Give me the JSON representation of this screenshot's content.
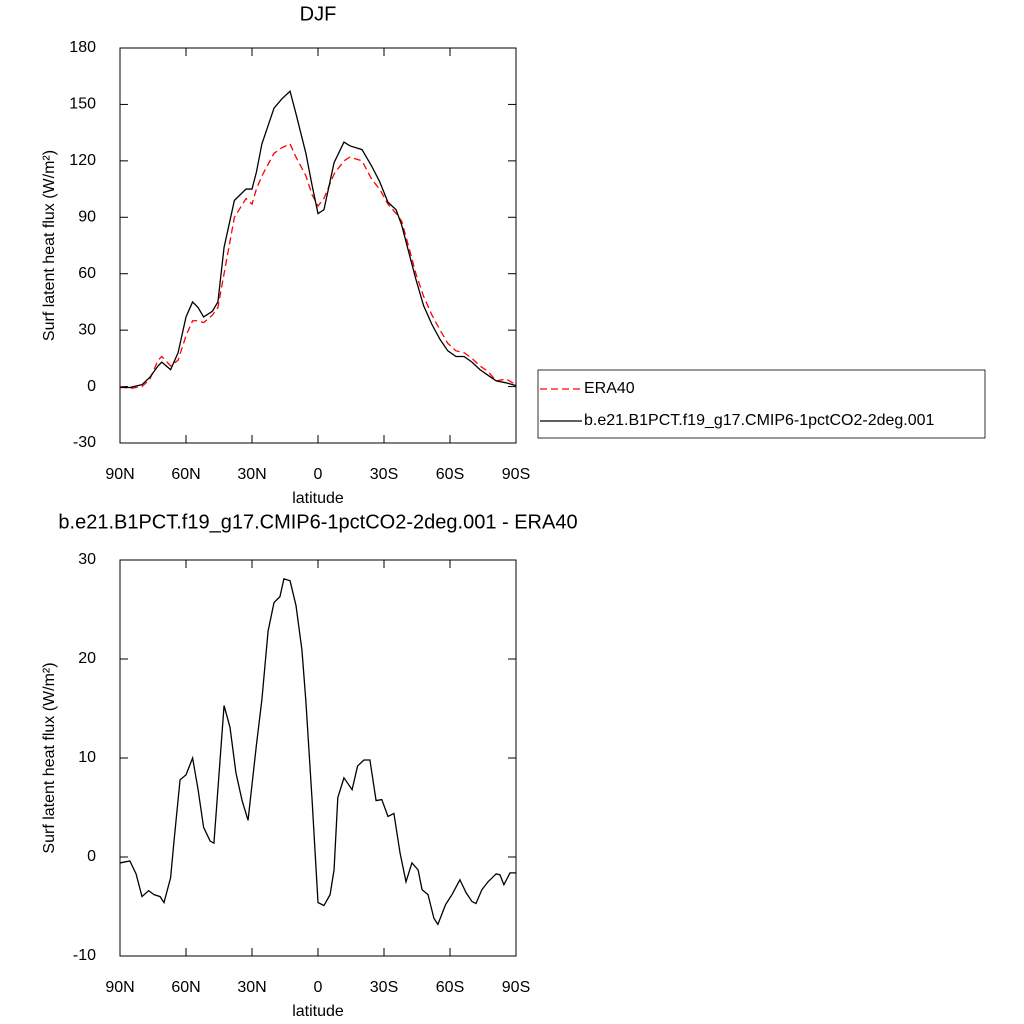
{
  "chart_data": [
    {
      "type": "line",
      "title": "DJF",
      "xlabel": "latitude",
      "ylabel": "Surf latent heat flux (W/m²)",
      "x": [
        90,
        85.5,
        80,
        76.4,
        72.7,
        71,
        67,
        63.6,
        60,
        57,
        54.5,
        52,
        48,
        45.5,
        42.7,
        38,
        32.7,
        30,
        28,
        25.5,
        20,
        16.4,
        12.7,
        10,
        5.5,
        2.7,
        0,
        -2.7,
        -7.3,
        -11.8,
        -14.5,
        -20,
        -24.5,
        -28,
        -31.8,
        -35.5,
        -38,
        -41.8,
        -44.5,
        -48,
        -51.8,
        -55.5,
        -59,
        -62.7,
        -66.4,
        -70,
        -73.6,
        -77.3,
        -81,
        -85.5,
        -90
      ],
      "series": [
        {
          "name": "ERA40",
          "color": "#ff0000",
          "dashed": true,
          "values": [
            0,
            -1,
            0,
            4,
            14,
            16,
            11,
            14,
            27,
            35,
            35,
            34,
            38,
            42,
            60,
            90,
            100,
            97,
            105,
            112,
            124,
            127,
            129,
            122,
            112,
            102,
            96,
            100,
            113,
            120,
            122,
            120,
            110,
            105,
            97,
            92,
            88,
            72,
            60,
            48,
            38,
            30,
            23,
            19,
            18,
            15,
            11,
            8,
            3,
            4,
            1
          ]
        },
        {
          "name": "b.e21.B1PCT.f19_g17.CMIP6-1pctCO2-2deg.001",
          "color": "#000000",
          "dashed": false,
          "values": [
            -0.5,
            -0.5,
            1,
            5,
            11,
            13,
            9,
            18,
            37,
            45,
            42,
            37,
            40,
            45,
            74,
            99,
            105,
            105,
            114,
            129,
            148,
            153,
            157,
            145,
            124,
            107,
            92,
            94,
            119,
            130,
            128,
            126,
            117,
            109,
            98,
            94,
            86,
            69,
            57,
            43,
            33,
            25,
            19,
            16,
            16,
            13,
            9,
            6,
            3,
            2,
            0.5
          ]
        }
      ],
      "xlim": [
        90,
        -90
      ],
      "xticks": [
        {
          "value": 90,
          "label": "90N"
        },
        {
          "value": 60,
          "label": "60N"
        },
        {
          "value": 30,
          "label": "30N"
        },
        0,
        {
          "value": -30,
          "label": "30S"
        },
        {
          "value": -60,
          "label": "60S"
        },
        {
          "value": -90,
          "label": "90S"
        }
      ],
      "ylim": [
        -30,
        180
      ],
      "yticks": [
        -30,
        0,
        30,
        60,
        90,
        120,
        150,
        180
      ],
      "legend": "right"
    },
    {
      "type": "line",
      "title": "b.e21.B1PCT.f19_g17.CMIP6-1pctCO2-2deg.001 - ERA40",
      "xlabel": "latitude",
      "ylabel": "Surf latent heat flux (W/m²)",
      "x": [
        90,
        85.5,
        82.7,
        80,
        77,
        74.5,
        71.8,
        70,
        67,
        65.5,
        62.7,
        60,
        57,
        54.5,
        52,
        49,
        47.3,
        42.7,
        40,
        37.3,
        34.5,
        31.8,
        28,
        25.5,
        22.7,
        20,
        17.3,
        15.5,
        12.7,
        10,
        7.3,
        5.5,
        2.7,
        0,
        -2.7,
        -5.5,
        -7.3,
        -9,
        -11.8,
        -15.5,
        -18,
        -20.9,
        -23.6,
        -26.4,
        -29,
        -31.8,
        -34.5,
        -37.3,
        -40,
        -42.7,
        -45.5,
        -47.3,
        -50,
        -52.7,
        -54.5,
        -58,
        -60.9,
        -64.5,
        -67.3,
        -70,
        -71.8,
        -74.5,
        -77.3,
        -81,
        -82.7,
        -84.5,
        -87.3,
        -90
      ],
      "values": [
        -0.6,
        -0.4,
        -1.7,
        -4,
        -3.4,
        -3.8,
        -4,
        -4.6,
        -2.1,
        1.5,
        7.8,
        8.3,
        10,
        6.8,
        3,
        1.6,
        1.4,
        15.3,
        13.1,
        8.5,
        5.7,
        3.7,
        11.3,
        15.9,
        22.8,
        25.7,
        26.3,
        28.1,
        27.9,
        25.4,
        20.9,
        15.7,
        5.8,
        -4.6,
        -4.9,
        -3.8,
        -1.3,
        6,
        8,
        6.8,
        9.2,
        9.8,
        9.8,
        5.7,
        5.8,
        4.1,
        4.4,
        0.4,
        -2.5,
        -0.6,
        -1.3,
        -3.3,
        -3.8,
        -6.2,
        -6.8,
        -4.8,
        -3.8,
        -2.3,
        -3.6,
        -4.5,
        -4.7,
        -3.3,
        -2.5,
        -1.7,
        -1.8,
        -2.8,
        -1.6,
        -1.6
      ],
      "color": "#000000",
      "xlim": [
        90,
        -90
      ],
      "xticks": [
        {
          "value": 90,
          "label": "90N"
        },
        {
          "value": 60,
          "label": "60N"
        },
        {
          "value": 30,
          "label": "30N"
        },
        0,
        {
          "value": -30,
          "label": "30S"
        },
        {
          "value": -60,
          "label": "60S"
        },
        {
          "value": -90,
          "label": "90S"
        }
      ],
      "ylim": [
        -10,
        30
      ],
      "yticks": [
        -10,
        0,
        10,
        20,
        30
      ]
    }
  ]
}
